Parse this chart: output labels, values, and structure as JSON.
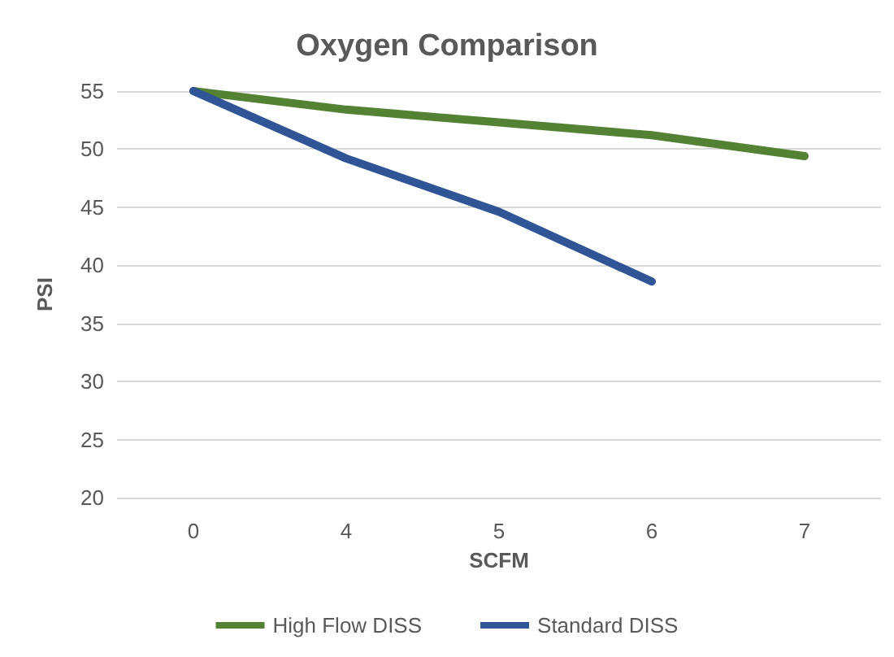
{
  "chart_data": {
    "type": "line",
    "title": "Oxygen Comparison",
    "xlabel": "SCFM",
    "ylabel": "PSI",
    "categories": [
      "0",
      "4",
      "5",
      "6",
      "7"
    ],
    "series": [
      {
        "name": "High Flow DISS",
        "color": "#548235",
        "values": [
          55,
          53.4,
          52.3,
          51.2,
          49.4
        ]
      },
      {
        "name": "Standard DISS",
        "color": "#2f5597",
        "values": [
          55,
          49.2,
          44.6,
          38.6,
          null
        ]
      }
    ],
    "ylim": [
      20,
      55
    ],
    "yticks": [
      20,
      25,
      30,
      35,
      40,
      45,
      50,
      55
    ],
    "grid": "y",
    "legend": "bottom",
    "marker": "none",
    "line_style": "solid"
  }
}
